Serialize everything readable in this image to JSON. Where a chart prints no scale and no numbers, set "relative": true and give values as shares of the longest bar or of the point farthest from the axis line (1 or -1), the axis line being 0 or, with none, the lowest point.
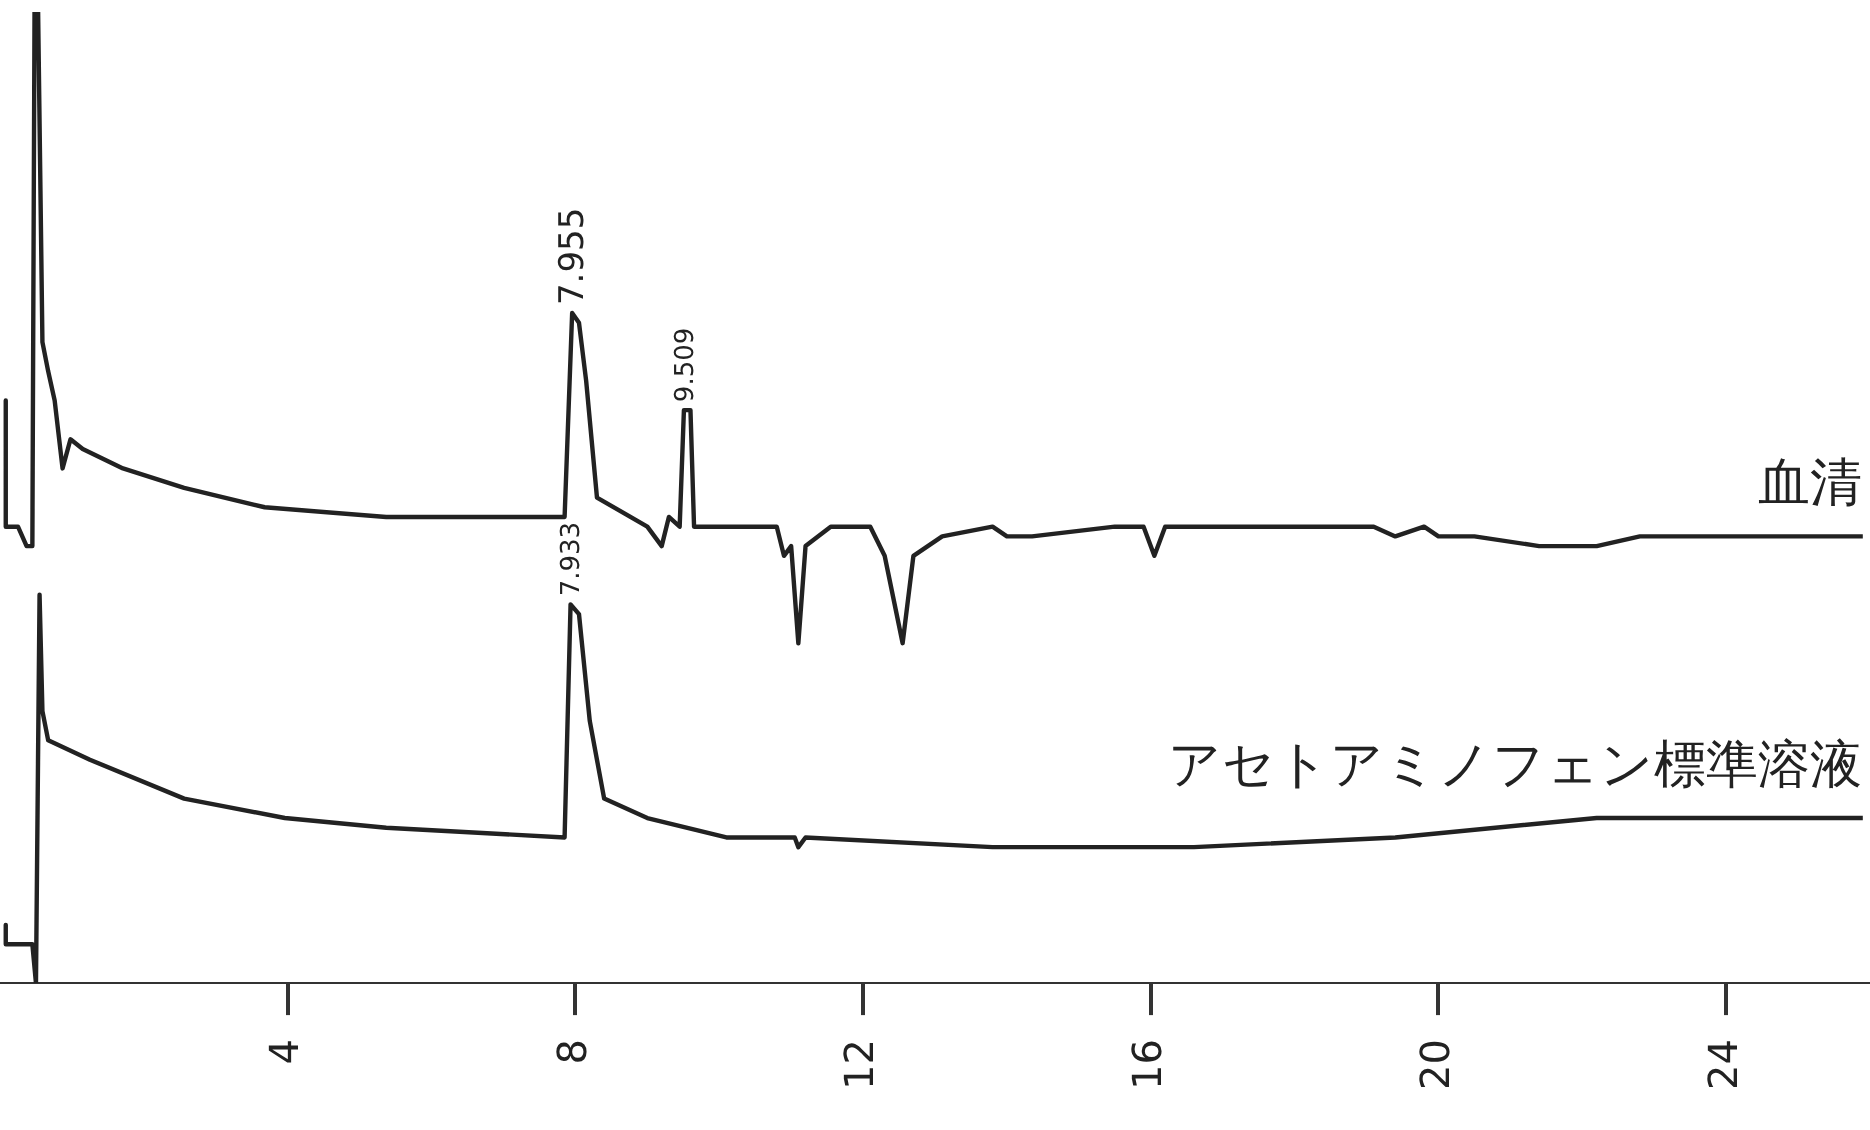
{
  "chart_data": {
    "type": "line",
    "relative": true,
    "legend": false,
    "xlim": [
      0,
      26
    ],
    "xticks": [
      4,
      8,
      12,
      16,
      20,
      24
    ],
    "series": [
      {
        "name": "血清",
        "color": "#222222",
        "x": [
          0.08,
          0.08,
          0.25,
          0.37,
          0.45,
          0.48,
          0.53,
          0.59,
          0.67,
          0.76,
          0.87,
          0.98,
          1.15,
          1.71,
          2.56,
          3.68,
          5.37,
          7.85,
          7.955,
          8.05,
          8.15,
          8.3,
          9.0,
          9.2,
          9.3,
          9.45,
          9.509,
          9.6,
          9.65,
          10.0,
          10.8,
          10.9,
          11.0,
          11.1,
          11.2,
          11.55,
          12.1,
          12.3,
          12.55,
          12.7,
          12.9,
          13.1,
          13.8,
          14.0,
          14.35,
          15.5,
          15.9,
          16.05,
          16.2,
          17.2,
          17.7,
          18.3,
          19.1,
          19.4,
          19.8,
          20.0,
          20.5,
          21.4,
          21.7,
          22.2,
          22.8,
          23.1,
          23.35,
          24.5,
          25.1,
          25.9
        ],
        "values": [
          0.6,
          0.47,
          0.47,
          0.45,
          0.45,
          1.0,
          1.0,
          0.66,
          0.63,
          0.6,
          0.53,
          0.56,
          0.55,
          0.53,
          0.51,
          0.49,
          0.48,
          0.48,
          0.69,
          0.68,
          0.62,
          0.5,
          0.47,
          0.45,
          0.48,
          0.47,
          0.59,
          0.59,
          0.47,
          0.47,
          0.47,
          0.44,
          0.45,
          0.35,
          0.45,
          0.47,
          0.47,
          0.44,
          0.35,
          0.44,
          0.45,
          0.46,
          0.47,
          0.46,
          0.46,
          0.47,
          0.47,
          0.44,
          0.47,
          0.47,
          0.47,
          0.47,
          0.47,
          0.46,
          0.47,
          0.46,
          0.46,
          0.45,
          0.45,
          0.45,
          0.46,
          0.46,
          0.46,
          0.46,
          0.46,
          0.46
        ]
      },
      {
        "name": "アセトアミノフェン標準溶液",
        "color": "#222222",
        "x": [
          0.08,
          0.08,
          0.45,
          0.5,
          0.55,
          0.59,
          0.67,
          1.25,
          2.56,
          3.96,
          5.37,
          7.85,
          7.933,
          8.05,
          8.2,
          8.4,
          9.0,
          10.1,
          11.05,
          11.1,
          11.2,
          13.8,
          16.6,
          19.4,
          22.2,
          25.0,
          25.9
        ],
        "values": [
          0.06,
          0.04,
          0.04,
          0.0,
          0.4,
          0.28,
          0.25,
          0.23,
          0.19,
          0.17,
          0.16,
          0.15,
          0.39,
          0.38,
          0.27,
          0.19,
          0.17,
          0.15,
          0.15,
          0.14,
          0.15,
          0.14,
          0.14,
          0.15,
          0.17,
          0.17,
          0.17
        ]
      }
    ],
    "annotations": [
      {
        "text": "7.955",
        "x": 7.955,
        "y": 0.69
      },
      {
        "text": "9.509",
        "x": 9.509,
        "y": 0.59
      },
      {
        "text": "7.933",
        "x": 7.933,
        "y": 0.39
      }
    ]
  }
}
